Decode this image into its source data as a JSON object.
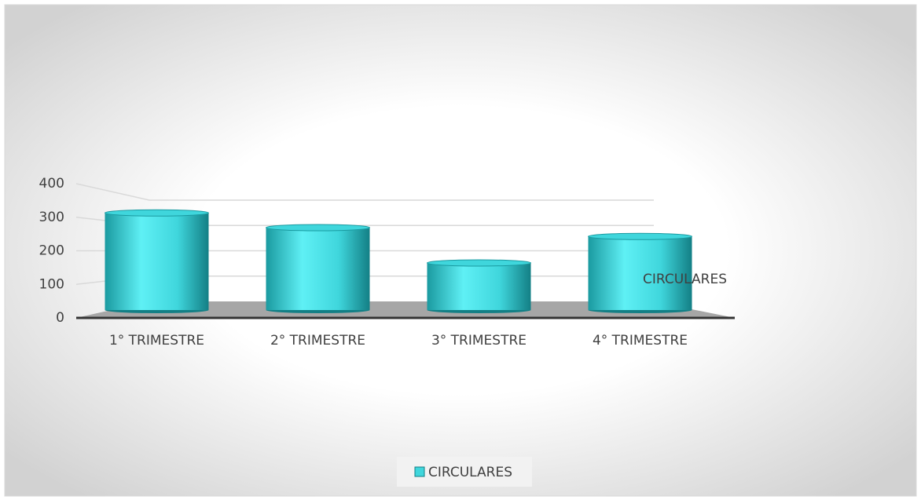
{
  "chart_data": {
    "type": "bar3d",
    "categories": [
      "1° TRIMESTRE",
      "2° TRIMESTRE",
      "3° TRIMESTRE",
      "4° TRIMESTRE"
    ],
    "series": [
      {
        "name": "CIRCULARES",
        "color": "#3fd6dc",
        "values": [
          330,
          280,
          160,
          250
        ]
      }
    ],
    "ylim": [
      0,
      400
    ],
    "yticks": [
      0,
      100,
      200,
      300,
      400
    ],
    "grid": true,
    "legend": "bottom"
  }
}
